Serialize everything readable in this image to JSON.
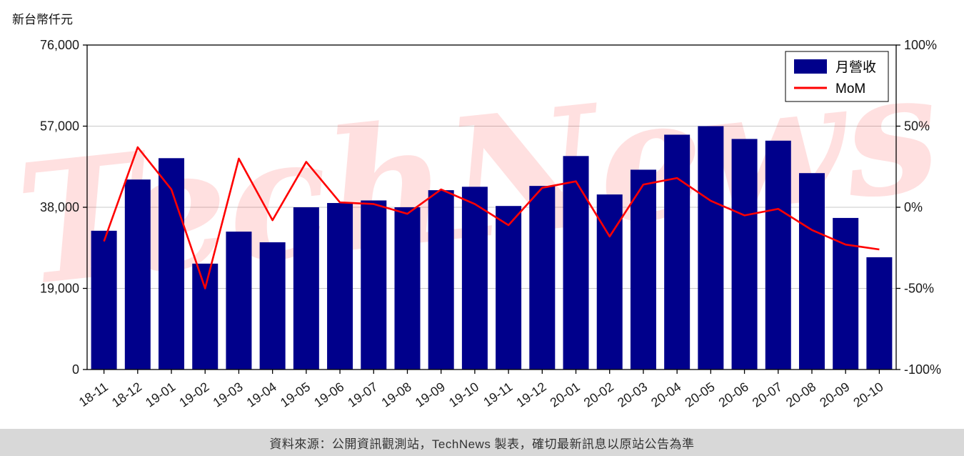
{
  "footer": {
    "text": "資料來源：公開資訊觀測站，TechNews 製表，確切最新訊息以原站公告為準"
  },
  "watermark": "TechNews",
  "colors": {
    "bar": "#00008b",
    "line": "#ff0000",
    "grid": "#c9c9c9",
    "axis": "#000000",
    "tick_text": "#1a1a1a",
    "footer_bg": "#d8d8d8",
    "watermark": "rgba(255,0,0,0.12)"
  },
  "chart_data": {
    "type": "combo_bar_line",
    "title": "",
    "unit_label": "新台幣仟元",
    "categories": [
      "18-11",
      "18-12",
      "19-01",
      "19-02",
      "19-03",
      "19-04",
      "19-05",
      "19-06",
      "19-07",
      "19-08",
      "19-09",
      "19-10",
      "19-11",
      "19-12",
      "20-01",
      "20-02",
      "20-03",
      "20-04",
      "20-05",
      "20-06",
      "20-07",
      "20-08",
      "20-09",
      "20-10"
    ],
    "series": [
      {
        "name": "月營收",
        "type": "bar",
        "axis": "left",
        "values": [
          32500,
          44500,
          49500,
          24800,
          32300,
          29800,
          38000,
          39000,
          39600,
          38000,
          42000,
          42800,
          38300,
          43000,
          50000,
          41000,
          46800,
          55000,
          57000,
          54000,
          53600,
          46000,
          35500,
          26300
        ]
      },
      {
        "name": "MoM",
        "type": "line",
        "axis": "right",
        "values": [
          -21,
          37,
          11,
          -50,
          30,
          -8,
          28,
          3,
          2,
          -4,
          11,
          2,
          -11,
          12,
          16,
          -18,
          14,
          18,
          4,
          -5,
          -1,
          -14,
          -23,
          -26
        ]
      }
    ],
    "left_axis": {
      "range": [
        0,
        76000
      ],
      "ticks": [
        0,
        19000,
        38000,
        57000,
        76000
      ],
      "tick_labels": [
        "0",
        "19,000",
        "38,000",
        "57,000",
        "76,000"
      ]
    },
    "right_axis": {
      "range": [
        -100,
        100
      ],
      "ticks": [
        "-100%",
        "-50%",
        "0%",
        "50%",
        "100%"
      ]
    },
    "legend": {
      "position": "top-right",
      "entries": [
        "月營收",
        "MoM"
      ]
    },
    "grid": "horizontal"
  }
}
